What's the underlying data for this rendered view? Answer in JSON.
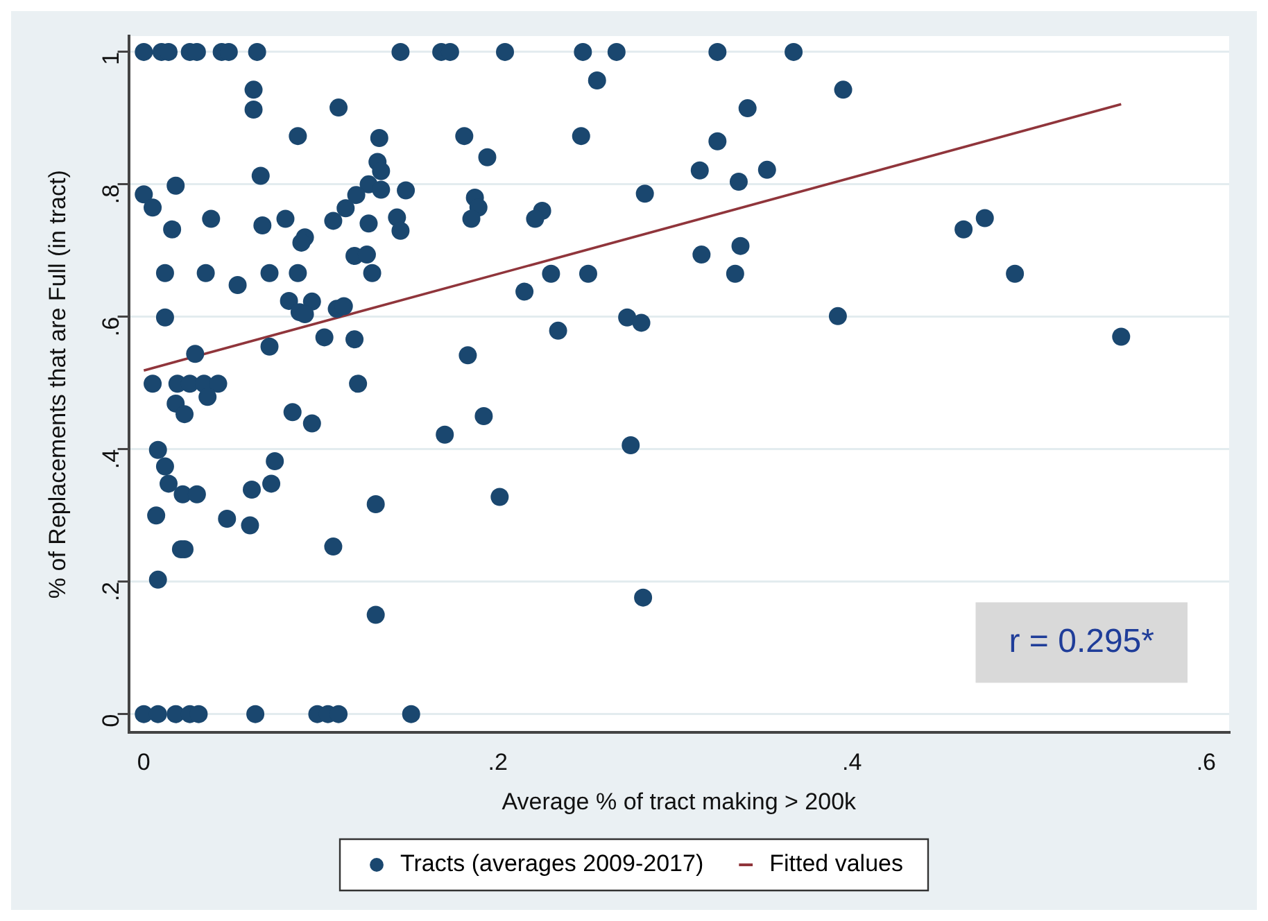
{
  "chart_data": {
    "type": "scatter",
    "xlabel": "Average % of tract making > 200k",
    "ylabel": "% of Replacements that are Full (in tract)",
    "xlim": [
      -0.0085,
      0.613
    ],
    "ylim": [
      -0.028,
      1.024
    ],
    "xticks": [
      0,
      {
        "value": 0.2,
        "label": ".2"
      },
      {
        "value": 0.4,
        "label": ".4"
      },
      {
        "value": 0.6,
        "label": ".6"
      }
    ],
    "yticks": [
      0,
      {
        "value": 0.2,
        "label": ".2"
      },
      {
        "value": 0.4,
        "label": ".4"
      },
      {
        "value": 0.6,
        "label": ".6"
      },
      {
        "value": 0.8,
        "label": ".8"
      },
      1
    ],
    "grid": "y",
    "legend": "bottom",
    "annotations": [
      "r = 0.295*"
    ],
    "series": [
      {
        "name": "Tracts (averages 2009-2017)",
        "type": "scatter",
        "marker": "circle",
        "color": "#1a476f",
        "x": [
          0,
          0.01,
          0.014,
          0.026,
          0.03,
          0.044,
          0.048,
          0.064,
          0.145,
          0.168,
          0.173,
          0.204,
          0.248,
          0.267,
          0.324,
          0.367,
          0.062,
          0.062,
          0.11,
          0.087,
          0.133,
          0.132,
          0.134,
          0.066,
          0.018,
          0,
          0.005,
          0.127,
          0.134,
          0.148,
          0.12,
          0.114,
          0.038,
          0.08,
          0.107,
          0.127,
          0.143,
          0.145,
          0.016,
          0.067,
          0.091,
          0.089,
          0.119,
          0.126,
          0.129,
          0.012,
          0.035,
          0.071,
          0.087,
          0.053,
          0.082,
          0.095,
          0.088,
          0.091,
          0.109,
          0.113,
          0.012,
          0.102,
          0.119,
          0.071,
          0.029,
          0.005,
          0.019,
          0.026,
          0.034,
          0.042,
          0.121,
          0.036,
          0.018,
          0.023,
          0.084,
          0.095,
          0.008,
          0.012,
          0.014,
          0.074,
          0.072,
          0.061,
          0.022,
          0.03,
          0.007,
          0.047,
          0.06,
          0.131,
          0.021,
          0.023,
          0.107,
          0.008,
          0.131,
          0,
          0.008,
          0.018,
          0.026,
          0.031,
          0.063,
          0.098,
          0.104,
          0.11,
          0.151,
          0.256,
          0.181,
          0.247,
          0.194,
          0.341,
          0.324,
          0.314,
          0.336,
          0.352,
          0.283,
          0.187,
          0.189,
          0.185,
          0.225,
          0.221,
          0.315,
          0.337,
          0.334,
          0.23,
          0.251,
          0.215,
          0.273,
          0.281,
          0.234,
          0.183,
          0.192,
          0.17,
          0.275,
          0.201,
          0.282,
          0.395,
          0.463,
          0.475,
          0.492,
          0.392,
          0.552
        ],
        "values": [
          1,
          1,
          1,
          1,
          1,
          1,
          1,
          1,
          1,
          1,
          1,
          1,
          1,
          1,
          1,
          1,
          0.943,
          0.913,
          0.916,
          0.873,
          0.87,
          0.834,
          0.82,
          0.813,
          0.798,
          0.785,
          0.765,
          0.8,
          0.792,
          0.791,
          0.784,
          0.764,
          0.748,
          0.748,
          0.745,
          0.741,
          0.75,
          0.73,
          0.732,
          0.738,
          0.72,
          0.712,
          0.692,
          0.694,
          0.666,
          0.666,
          0.666,
          0.666,
          0.666,
          0.648,
          0.624,
          0.623,
          0.607,
          0.604,
          0.612,
          0.616,
          0.599,
          0.569,
          0.566,
          0.555,
          0.544,
          0.499,
          0.499,
          0.499,
          0.499,
          0.499,
          0.499,
          0.479,
          0.469,
          0.453,
          0.456,
          0.439,
          0.399,
          0.374,
          0.348,
          0.382,
          0.348,
          0.339,
          0.332,
          0.332,
          0.3,
          0.295,
          0.285,
          0.317,
          0.249,
          0.249,
          0.253,
          0.203,
          0.15,
          0,
          0,
          0,
          0,
          0,
          0,
          0,
          0,
          0,
          0,
          0.957,
          0.873,
          0.873,
          0.841,
          0.915,
          0.865,
          0.821,
          0.804,
          0.822,
          0.786,
          0.78,
          0.765,
          0.748,
          0.76,
          0.748,
          0.694,
          0.707,
          0.665,
          0.665,
          0.665,
          0.638,
          0.599,
          0.591,
          0.579,
          0.542,
          0.45,
          0.422,
          0.406,
          0.328,
          0.176,
          0.943,
          0.732,
          0.749,
          0.665,
          0.601,
          0.57
        ]
      },
      {
        "name": "Fitted values",
        "type": "line",
        "color": "#90353b",
        "x": [
          0,
          0.552
        ],
        "values": [
          0.519,
          0.921
        ]
      }
    ]
  }
}
